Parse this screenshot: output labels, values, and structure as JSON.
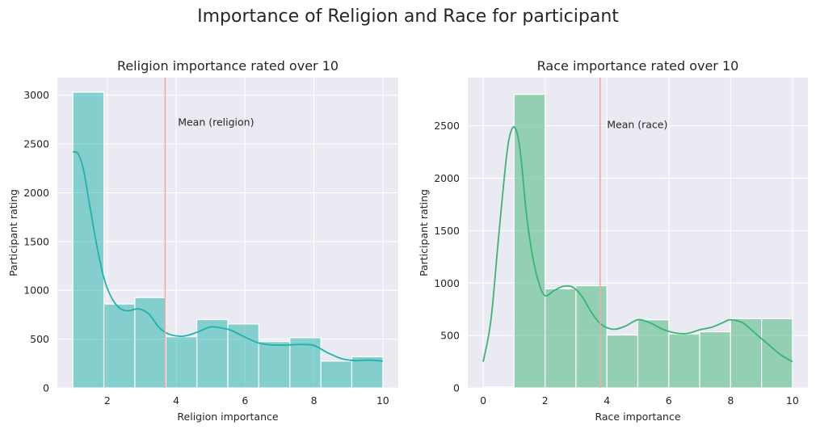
{
  "suptitle": "Importance of Religion and Race for participant",
  "chart_data": [
    {
      "type": "bar",
      "title": "Religion importance rated over 10",
      "xlabel": "Religion importance",
      "ylabel": "Participant rating",
      "xlim": [
        0.55,
        10.45
      ],
      "ylim": [
        0,
        3180
      ],
      "xticks": [
        2,
        4,
        6,
        8,
        10
      ],
      "yticks": [
        0,
        500,
        1000,
        1500,
        2000,
        2500,
        3000
      ],
      "bins": [
        {
          "x0": 1.0,
          "x1": 1.9,
          "value": 3030
        },
        {
          "x0": 1.9,
          "x1": 2.8,
          "value": 860
        },
        {
          "x0": 2.8,
          "x1": 3.7,
          "value": 925
        },
        {
          "x0": 3.7,
          "x1": 4.6,
          "value": 525
        },
        {
          "x0": 4.6,
          "x1": 5.5,
          "value": 700
        },
        {
          "x0": 5.5,
          "x1": 6.4,
          "value": 655
        },
        {
          "x0": 6.4,
          "x1": 7.3,
          "value": 475
        },
        {
          "x0": 7.3,
          "x1": 8.2,
          "value": 515
        },
        {
          "x0": 8.2,
          "x1": 9.1,
          "value": 275
        },
        {
          "x0": 9.1,
          "x1": 10.0,
          "value": 320
        }
      ],
      "kde": {
        "x": [
          1.0,
          1.15,
          1.3,
          1.5,
          1.7,
          1.9,
          2.1,
          2.35,
          2.6,
          2.9,
          3.2,
          3.5,
          3.8,
          4.2,
          4.6,
          5.0,
          5.3,
          5.6,
          6.0,
          6.4,
          6.8,
          7.2,
          7.6,
          8.0,
          8.4,
          8.8,
          9.2,
          9.6,
          10.0
        ],
        "y": [
          2420,
          2400,
          2250,
          1850,
          1450,
          1130,
          940,
          820,
          790,
          810,
          760,
          620,
          550,
          530,
          570,
          625,
          615,
          590,
          520,
          460,
          440,
          440,
          445,
          435,
          360,
          300,
          280,
          285,
          275
        ]
      },
      "mean": {
        "x": 3.68,
        "label": "Mean (religion)",
        "label_x": 4.05,
        "label_y": 2720
      },
      "bar_color": "#20B2AA",
      "line_color": "#20B2AA",
      "mean_color": "#F4A7A3",
      "grid": true
    },
    {
      "type": "bar",
      "title": "Race importance rated over 10",
      "xlabel": "Race importance",
      "ylabel": "Participant rating",
      "xlim": [
        -0.5,
        10.5
      ],
      "ylim": [
        0,
        2960
      ],
      "xticks": [
        0,
        2,
        4,
        6,
        8,
        10
      ],
      "yticks": [
        0,
        500,
        1000,
        1500,
        2000,
        2500
      ],
      "bins": [
        {
          "x0": 0,
          "x1": 1,
          "value": 10
        },
        {
          "x0": 1,
          "x1": 2,
          "value": 2800
        },
        {
          "x0": 2,
          "x1": 3,
          "value": 945
        },
        {
          "x0": 3,
          "x1": 4,
          "value": 975
        },
        {
          "x0": 4,
          "x1": 5,
          "value": 505
        },
        {
          "x0": 5,
          "x1": 6,
          "value": 650
        },
        {
          "x0": 6,
          "x1": 7,
          "value": 515
        },
        {
          "x0": 7,
          "x1": 8,
          "value": 535
        },
        {
          "x0": 8,
          "x1": 9,
          "value": 660
        },
        {
          "x0": 9,
          "x1": 10,
          "value": 660
        }
      ],
      "kde": {
        "x": [
          0,
          0.25,
          0.5,
          0.75,
          0.9,
          1.05,
          1.2,
          1.4,
          1.6,
          1.8,
          2.0,
          2.3,
          2.6,
          2.9,
          3.2,
          3.5,
          3.8,
          4.2,
          4.6,
          5.0,
          5.4,
          5.8,
          6.2,
          6.6,
          7.0,
          7.4,
          7.8,
          8.0,
          8.4,
          8.8,
          9.2,
          9.6,
          10.0
        ],
        "y": [
          250,
          650,
          1450,
          2200,
          2450,
          2470,
          2250,
          1650,
          1250,
          1000,
          880,
          930,
          970,
          960,
          870,
          720,
          610,
          560,
          590,
          650,
          620,
          560,
          525,
          520,
          555,
          580,
          630,
          650,
          620,
          520,
          420,
          320,
          250
        ]
      },
      "mean": {
        "x": 3.78,
        "label": "Mean (race)",
        "label_x": 4.0,
        "label_y": 2510
      },
      "bar_color": "#3CB371",
      "line_color": "#3CB371",
      "mean_color": "#F4A7A3",
      "grid": true
    }
  ]
}
